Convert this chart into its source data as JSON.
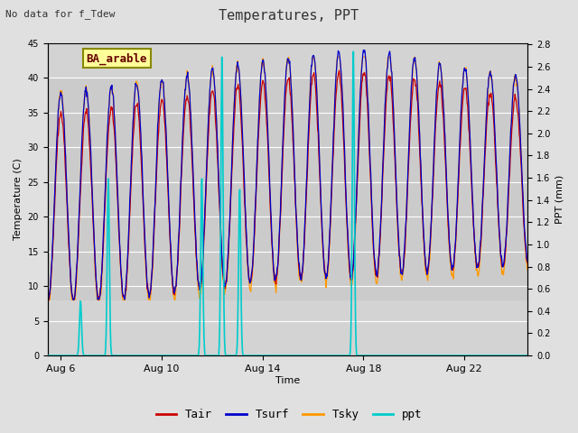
{
  "title": "Temperatures, PPT",
  "subtitle": "No data for f_Tdew",
  "station_label": "BA_arable",
  "xlabel": "Time",
  "ylabel_left": "Temperature (C)",
  "ylabel_right": "PPT (mm)",
  "ylim_left": [
    0,
    45
  ],
  "ylim_right": [
    0.0,
    2.8125
  ],
  "background_color": "#e0e0e0",
  "plot_bg_color": "#d3d3d3",
  "band_color": "#c0c0c0",
  "grid_color": "#ffffff",
  "colors": {
    "Tair": "#cc0000",
    "Tsurf": "#0000cc",
    "Tsky": "#ff9900",
    "ppt": "#00cccc"
  },
  "x_tick_labels": [
    "Aug 6",
    "Aug 10",
    "Aug 14",
    "Aug 18",
    "Aug 22"
  ],
  "x_tick_positions": [
    5.5,
    9.5,
    13.5,
    17.5,
    21.5
  ],
  "date_start": 5.0,
  "date_end": 24.0,
  "band_ymin": 8,
  "band_ymax": 40,
  "ppt_events": [
    {
      "day": 6.3,
      "height": 0.5
    },
    {
      "day": 7.4,
      "height": 1.6
    },
    {
      "day": 11.1,
      "height": 1.6
    },
    {
      "day": 11.9,
      "height": 2.7
    },
    {
      "day": 12.6,
      "height": 1.5
    },
    {
      "day": 17.1,
      "height": 2.75
    }
  ]
}
